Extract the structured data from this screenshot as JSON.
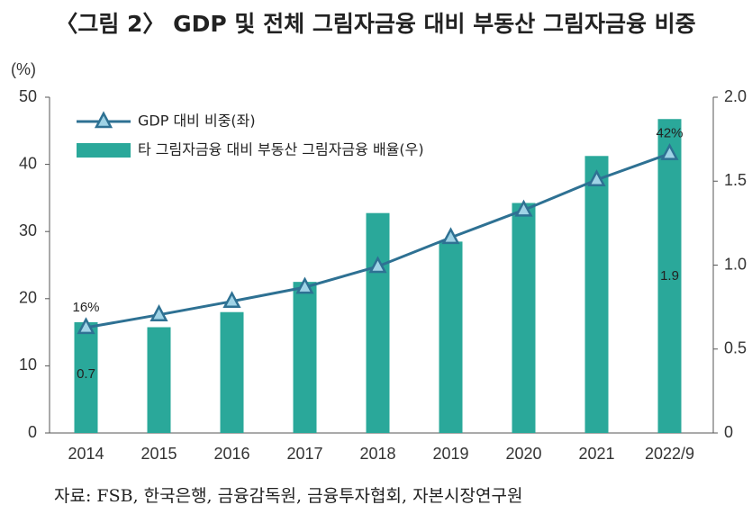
{
  "chart_data": {
    "type": "bar-line",
    "title": "〈그림 2〉 GDP 및 전체 그림자금융 대비 부동산 그림자금융 비중",
    "y_label": "(%)",
    "categories": [
      "2014",
      "2015",
      "2016",
      "2017",
      "2018",
      "2019",
      "2020",
      "2021",
      "2022/9"
    ],
    "series": [
      {
        "name": "GDP 대비 비중(좌)",
        "type": "line",
        "color": "#2e7193",
        "marker_color": "#9fd3e6",
        "values": [
          15.7,
          17.6,
          19.6,
          21.7,
          24.8,
          29.1,
          33.2,
          37.7,
          41.6
        ],
        "value_labels": [
          "16%",
          null,
          null,
          null,
          null,
          null,
          null,
          null,
          "42%"
        ]
      },
      {
        "name": "타 그림자금융 대비 부동산 그림자금융 배율(우)",
        "type": "bar",
        "axis": "y2",
        "color": "#2aa89a",
        "values": [
          0.66,
          0.63,
          0.72,
          0.9,
          1.31,
          1.14,
          1.37,
          1.65,
          1.87
        ],
        "value_labels": [
          "0.7",
          null,
          null,
          null,
          null,
          null,
          null,
          null,
          "1.9"
        ]
      }
    ],
    "ylim": [
      0,
      50
    ],
    "yticks": [
      0,
      10,
      20,
      30,
      40,
      50
    ],
    "y2lim": [
      0,
      2
    ],
    "y2ticks": [
      0,
      0.5,
      {
        "value": 1,
        "label": "1.0"
      },
      1.5,
      {
        "value": 2,
        "label": "2.0"
      }
    ],
    "source": "자료: FSB, 한국은행, 금융감독원, 금융투자협회, 자본시장연구원"
  }
}
